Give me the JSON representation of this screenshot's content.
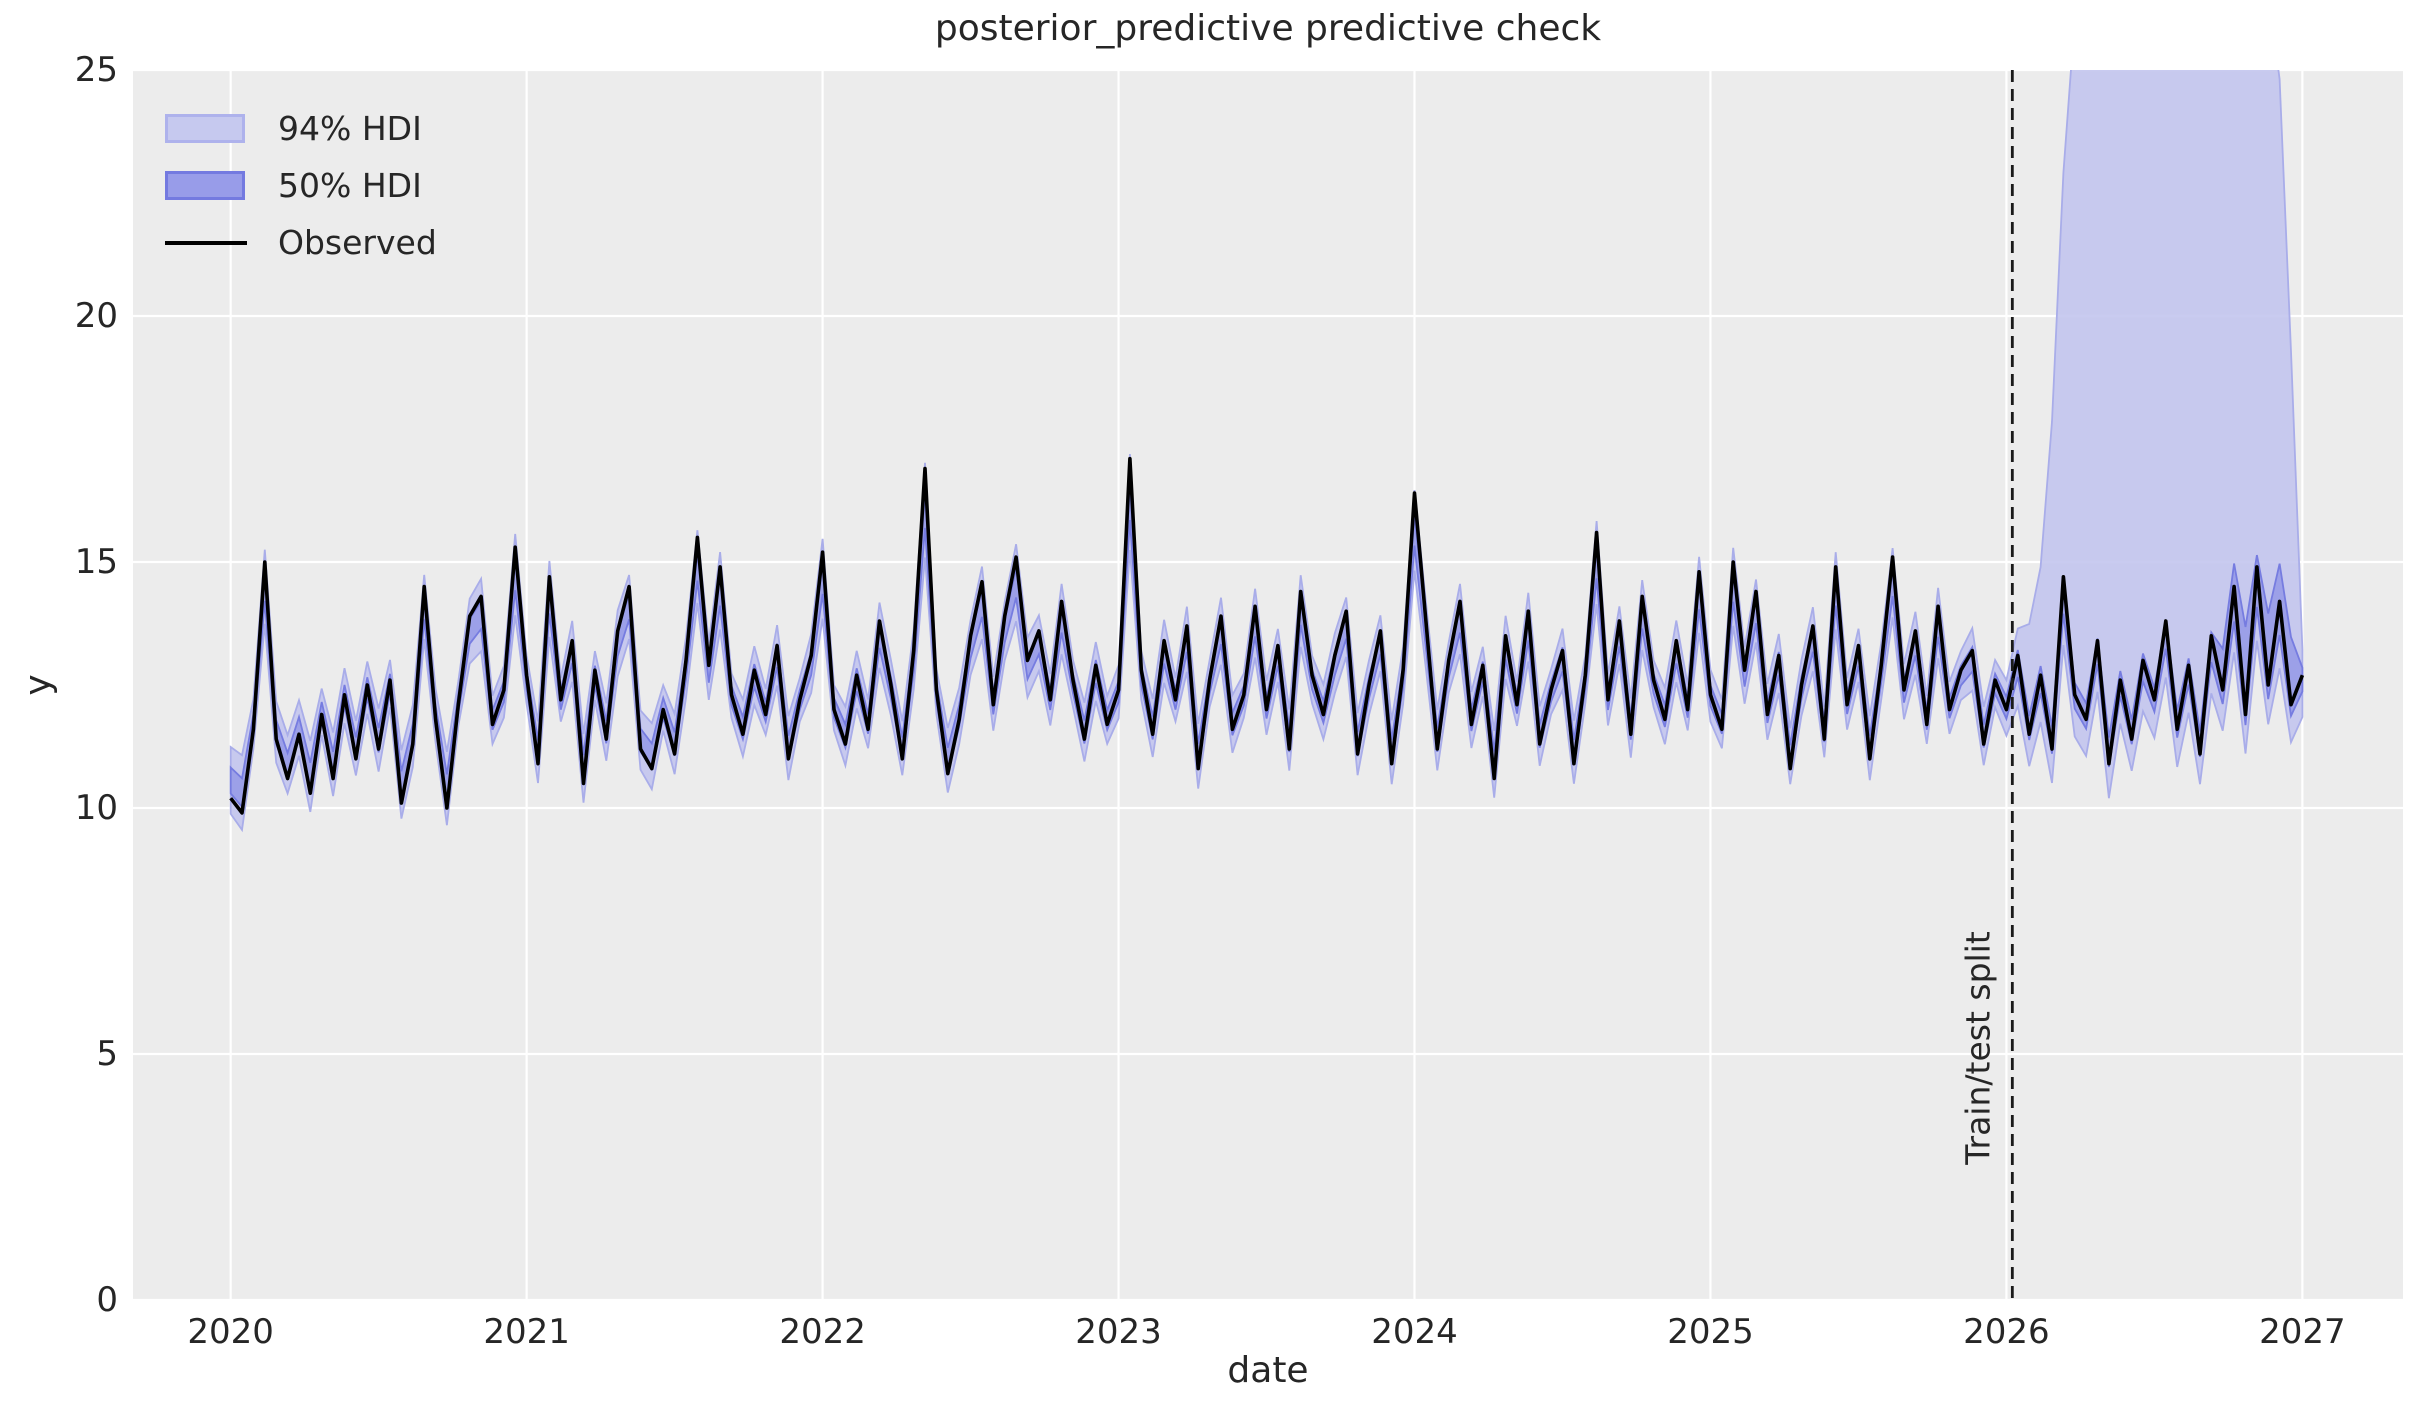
{
  "chart_data": {
    "type": "line",
    "title": "posterior_predictive predictive check",
    "xlabel": "date",
    "ylabel": "y",
    "xlim": [
      2019.67,
      2027.34
    ],
    "ylim": [
      0,
      25
    ],
    "x_ticks": [
      2020,
      2021,
      2022,
      2023,
      2024,
      2025,
      2026,
      2027
    ],
    "x_tick_labels": [
      "2020",
      "2021",
      "2022",
      "2023",
      "2024",
      "2025",
      "2026",
      "2027"
    ],
    "y_ticks": [
      0,
      5,
      10,
      15,
      20,
      25
    ],
    "y_tick_labels": [
      "0",
      "5",
      "10",
      "15",
      "20",
      "25"
    ],
    "grid": true,
    "legend": {
      "position": "upper-left",
      "items": [
        {
          "label": "94% HDI",
          "type": "patch",
          "fill": "#c6c9ef",
          "border": "#aeb2ec"
        },
        {
          "label": "50% HDI",
          "type": "patch",
          "fill": "#989ce9",
          "border": "#747ae0"
        },
        {
          "label": "Observed",
          "type": "line",
          "color": "#000000"
        }
      ]
    },
    "split_line": {
      "x": 2026.02,
      "label": "Train/test split",
      "style": "dashed",
      "color": "#1a1a1a"
    },
    "colors": {
      "figure_bg": "#ffffff",
      "plot_bg": "#ececec",
      "grid": "#ffffff",
      "hdi94_fill": "#c3c5ee",
      "hdi94_edge": "#a9ade9",
      "hdi50_fill": "#9a9ee7",
      "hdi50_edge": "#767ce0",
      "observed": "#000000",
      "text": "#262626"
    },
    "series": {
      "x_start": 2020.0,
      "x_step": 0.038462,
      "observed": [
        10.2,
        9.9,
        11.6,
        15.0,
        11.4,
        10.6,
        11.5,
        10.3,
        11.9,
        10.6,
        12.3,
        11.0,
        12.5,
        11.2,
        12.6,
        10.1,
        11.3,
        14.5,
        11.8,
        10.0,
        12.1,
        13.9,
        14.3,
        11.7,
        12.4,
        15.3,
        12.7,
        10.9,
        14.7,
        12.2,
        13.4,
        10.5,
        12.8,
        11.4,
        13.6,
        14.5,
        11.2,
        10.8,
        12.0,
        11.1,
        13.0,
        15.5,
        12.9,
        14.9,
        12.3,
        11.5,
        12.8,
        11.9,
        13.3,
        11.0,
        12.2,
        13.1,
        15.2,
        12.0,
        11.3,
        12.7,
        11.6,
        13.8,
        12.5,
        11.0,
        13.2,
        16.9,
        12.4,
        10.7,
        11.8,
        13.5,
        14.6,
        12.1,
        13.9,
        15.1,
        13.0,
        13.6,
        12.2,
        14.2,
        12.6,
        11.4,
        12.9,
        11.7,
        12.4,
        17.1,
        12.8,
        11.5,
        13.4,
        12.2,
        13.7,
        10.8,
        12.6,
        13.9,
        11.6,
        12.3,
        14.1,
        12.0,
        13.3,
        11.2,
        14.4,
        12.7,
        11.9,
        13.1,
        14.0,
        11.1,
        12.5,
        13.6,
        10.9,
        12.8,
        16.4,
        13.8,
        11.2,
        13.0,
        14.2,
        11.7,
        12.9,
        10.6,
        13.5,
        12.1,
        14.0,
        11.3,
        12.4,
        13.2,
        10.9,
        12.7,
        15.6,
        12.2,
        13.8,
        11.5,
        14.3,
        12.6,
        11.8,
        13.4,
        12.0,
        14.8,
        12.3,
        11.6,
        15.0,
        12.8,
        14.4,
        11.9,
        13.1,
        10.8,
        12.5,
        13.7,
        11.4,
        14.9,
        12.1,
        13.3,
        11.0,
        12.9,
        15.1,
        12.4,
        13.6,
        11.7,
        14.1,
        12.0,
        12.8,
        13.2,
        11.3,
        12.6,
        12.0,
        13.1,
        11.5,
        12.7,
        11.2,
        14.7,
        12.3,
        11.8,
        13.4,
        10.9,
        12.6,
        11.4,
        13.0,
        12.2,
        13.8,
        11.6,
        12.9,
        11.1,
        13.5,
        12.4,
        14.5,
        11.9,
        14.9,
        12.5,
        14.2,
        12.1,
        12.7
      ],
      "center_pull": 0.82,
      "center_mean": 12.2,
      "hdi94": {
        "base_halfwidth": 0.5,
        "test_base_halfwidth": 0.62,
        "dev_scale": 0.09,
        "test_lower_extra": 0.15,
        "test_upper_envelope": [
          [
            2026.04,
            13.0
          ],
          [
            2026.1,
            14.2
          ],
          [
            2026.14,
            16.0
          ],
          [
            2026.17,
            20.0
          ],
          [
            2026.21,
            25.2
          ],
          [
            2026.28,
            28.0
          ],
          [
            2026.5,
            29.0
          ],
          [
            2026.75,
            28.5
          ],
          [
            2026.88,
            26.8
          ],
          [
            2026.93,
            24.5
          ],
          [
            2026.96,
            19.5
          ],
          [
            2026.98,
            16.8
          ],
          [
            2027.0,
            15.4
          ]
        ]
      },
      "hdi50": {
        "base_halfwidth": 0.2,
        "scale_from_94": 0.35,
        "test_upper_envelope": [
          [
            2026.73,
            13.2
          ],
          [
            2026.77,
            15.0
          ],
          [
            2026.81,
            13.6
          ],
          [
            2026.85,
            15.3
          ],
          [
            2026.88,
            13.8
          ],
          [
            2026.92,
            15.1
          ],
          [
            2026.96,
            13.4
          ],
          [
            2027.0,
            15.2
          ]
        ]
      }
    }
  }
}
